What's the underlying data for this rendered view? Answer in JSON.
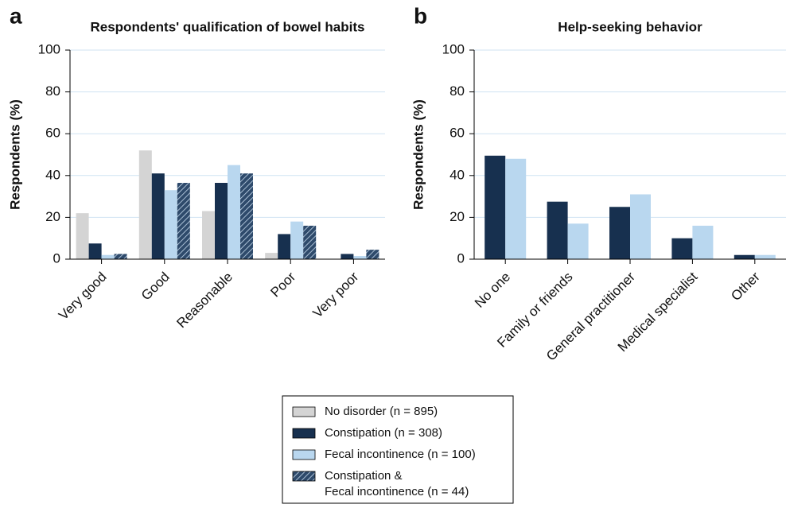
{
  "chart_data": [
    {
      "type": "bar",
      "panel_label": "a",
      "title": "Respondents' qualification of bowel habits",
      "ylabel": "Respondents (%)",
      "categories": [
        "Very good",
        "Good",
        "Reasonable",
        "Poor",
        "Very poor"
      ],
      "series": [
        {
          "name": "No disorder (n = 895)",
          "color": "#d4d4d4",
          "values": [
            22,
            52,
            23,
            3,
            0
          ]
        },
        {
          "name": "Constipation (n = 308)",
          "color": "#17304f",
          "values": [
            7.5,
            41,
            36.5,
            12,
            2.5
          ]
        },
        {
          "name": "Fecal incontinence (n = 100)",
          "color": "#b9d7ef",
          "values": [
            2,
            33,
            45,
            18,
            1.5
          ]
        },
        {
          "name": "Constipation &\nFecal incontinence (n = 44)",
          "color": "#2e4a6b",
          "pattern": "hatch",
          "values": [
            2.5,
            36.5,
            41,
            16,
            4.5
          ]
        }
      ],
      "ylim": [
        0,
        100
      ],
      "yticks": [
        0,
        20,
        40,
        60,
        80,
        100
      ],
      "grid": true
    },
    {
      "type": "bar",
      "panel_label": "b",
      "title": "Help-seeking behavior",
      "ylabel": "Respondents (%)",
      "categories": [
        "No one",
        "Family or friends",
        "General practitioner",
        "Medical specialist",
        "Other"
      ],
      "series": [
        {
          "color": "#17304f",
          "values": [
            49.5,
            27.5,
            25,
            10,
            2
          ]
        },
        {
          "color": "#b9d7ef",
          "values": [
            48,
            17,
            31,
            16,
            2
          ]
        }
      ],
      "ylim": [
        0,
        100
      ],
      "yticks": [
        0,
        20,
        40,
        60,
        80,
        100
      ],
      "grid": true
    }
  ]
}
